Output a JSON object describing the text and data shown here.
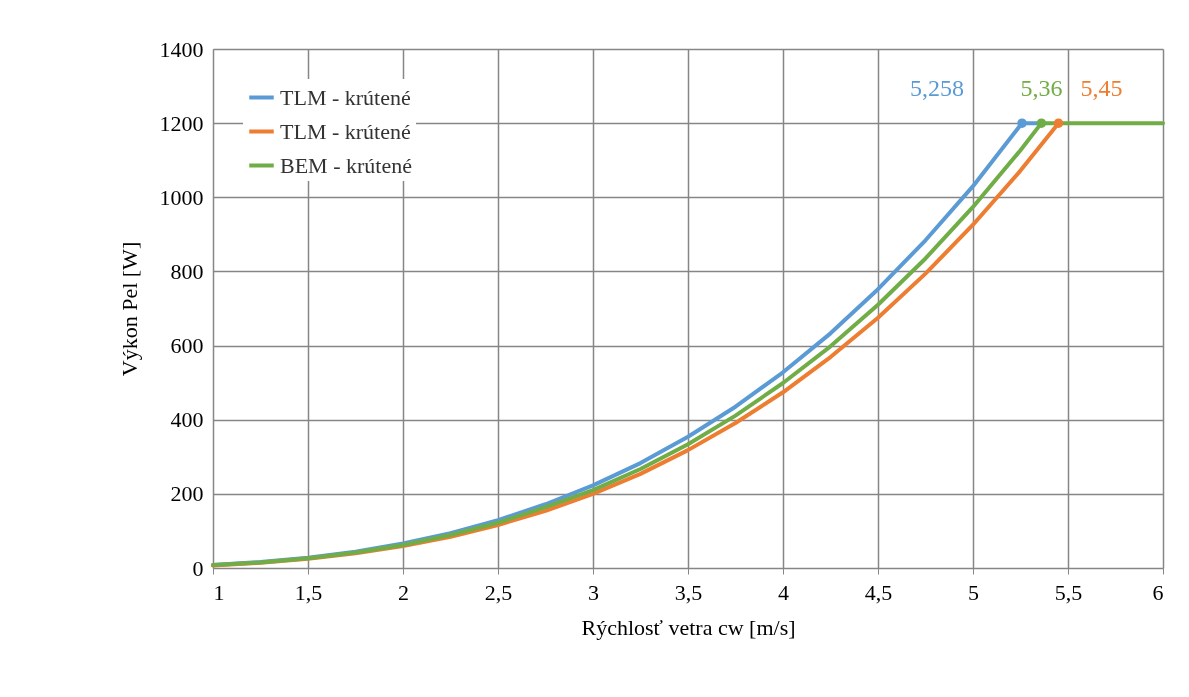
{
  "chart_data": {
    "type": "line",
    "xlabel": "Rýchlosť vetra cw [m/s]",
    "ylabel": "Výkon Pel [W]",
    "series": [
      {
        "name": "TLM - krútené",
        "color": "#5b9bd5",
        "x": [
          1,
          1.25,
          1.5,
          1.75,
          2,
          2.25,
          2.5,
          2.75,
          3,
          3.25,
          3.5,
          3.75,
          4,
          4.25,
          4.5,
          4.75,
          5,
          5.258,
          5.36
        ],
        "values": [
          8,
          16,
          28,
          44,
          66,
          94,
          129,
          172,
          223,
          283,
          354,
          435,
          528,
          633,
          752,
          884,
          1030,
          1200,
          1200
        ]
      },
      {
        "name": "TLM - krútené",
        "color": "#ed7d31",
        "x": [
          1,
          1.25,
          1.5,
          1.75,
          2,
          2.25,
          2.5,
          2.75,
          3,
          3.25,
          3.5,
          3.75,
          4,
          4.25,
          4.5,
          4.75,
          5,
          5.25,
          5.45
        ],
        "values": [
          7,
          14,
          25,
          40,
          59,
          84,
          116,
          154,
          200,
          254,
          318,
          391,
          474,
          569,
          675,
          794,
          926,
          1072,
          1200
        ]
      },
      {
        "name": "BEM - krútené",
        "color": "#70ad47",
        "x": [
          1,
          1.25,
          1.5,
          1.75,
          2,
          2.25,
          2.5,
          2.75,
          3,
          3.25,
          3.5,
          3.75,
          4,
          4.25,
          4.5,
          4.75,
          5,
          5.25,
          5.36,
          5.5,
          6
        ],
        "values": [
          8,
          15,
          26,
          42,
          62,
          89,
          122,
          164,
          210,
          267,
          334,
          411,
          499,
          598,
          710,
          835,
          974,
          1127,
          1200,
          1200,
          1200
        ]
      }
    ],
    "xlim": [
      1,
      6
    ],
    "xticks": [
      1,
      {
        "value": 1.5,
        "label": "1,5"
      },
      2,
      {
        "value": 2.5,
        "label": "2,5"
      },
      3,
      {
        "value": 3.5,
        "label": "3,5"
      },
      4,
      {
        "value": 4.5,
        "label": "4,5"
      },
      5,
      {
        "value": 5.5,
        "label": "5,5"
      },
      6
    ],
    "ylim": [
      0,
      1400
    ],
    "yticks": [
      0,
      200,
      400,
      600,
      800,
      1000,
      1200,
      1400
    ],
    "grid": true,
    "legend": "top left",
    "marker": "none",
    "line_style": "solid",
    "annotations": [
      {
        "text": "5,258",
        "x": 5.258,
        "y": 1200
      },
      {
        "text": "5,36",
        "x": 5.36,
        "y": 1200
      },
      {
        "text": "5,45",
        "x": 5.45,
        "y": 1200
      }
    ]
  }
}
